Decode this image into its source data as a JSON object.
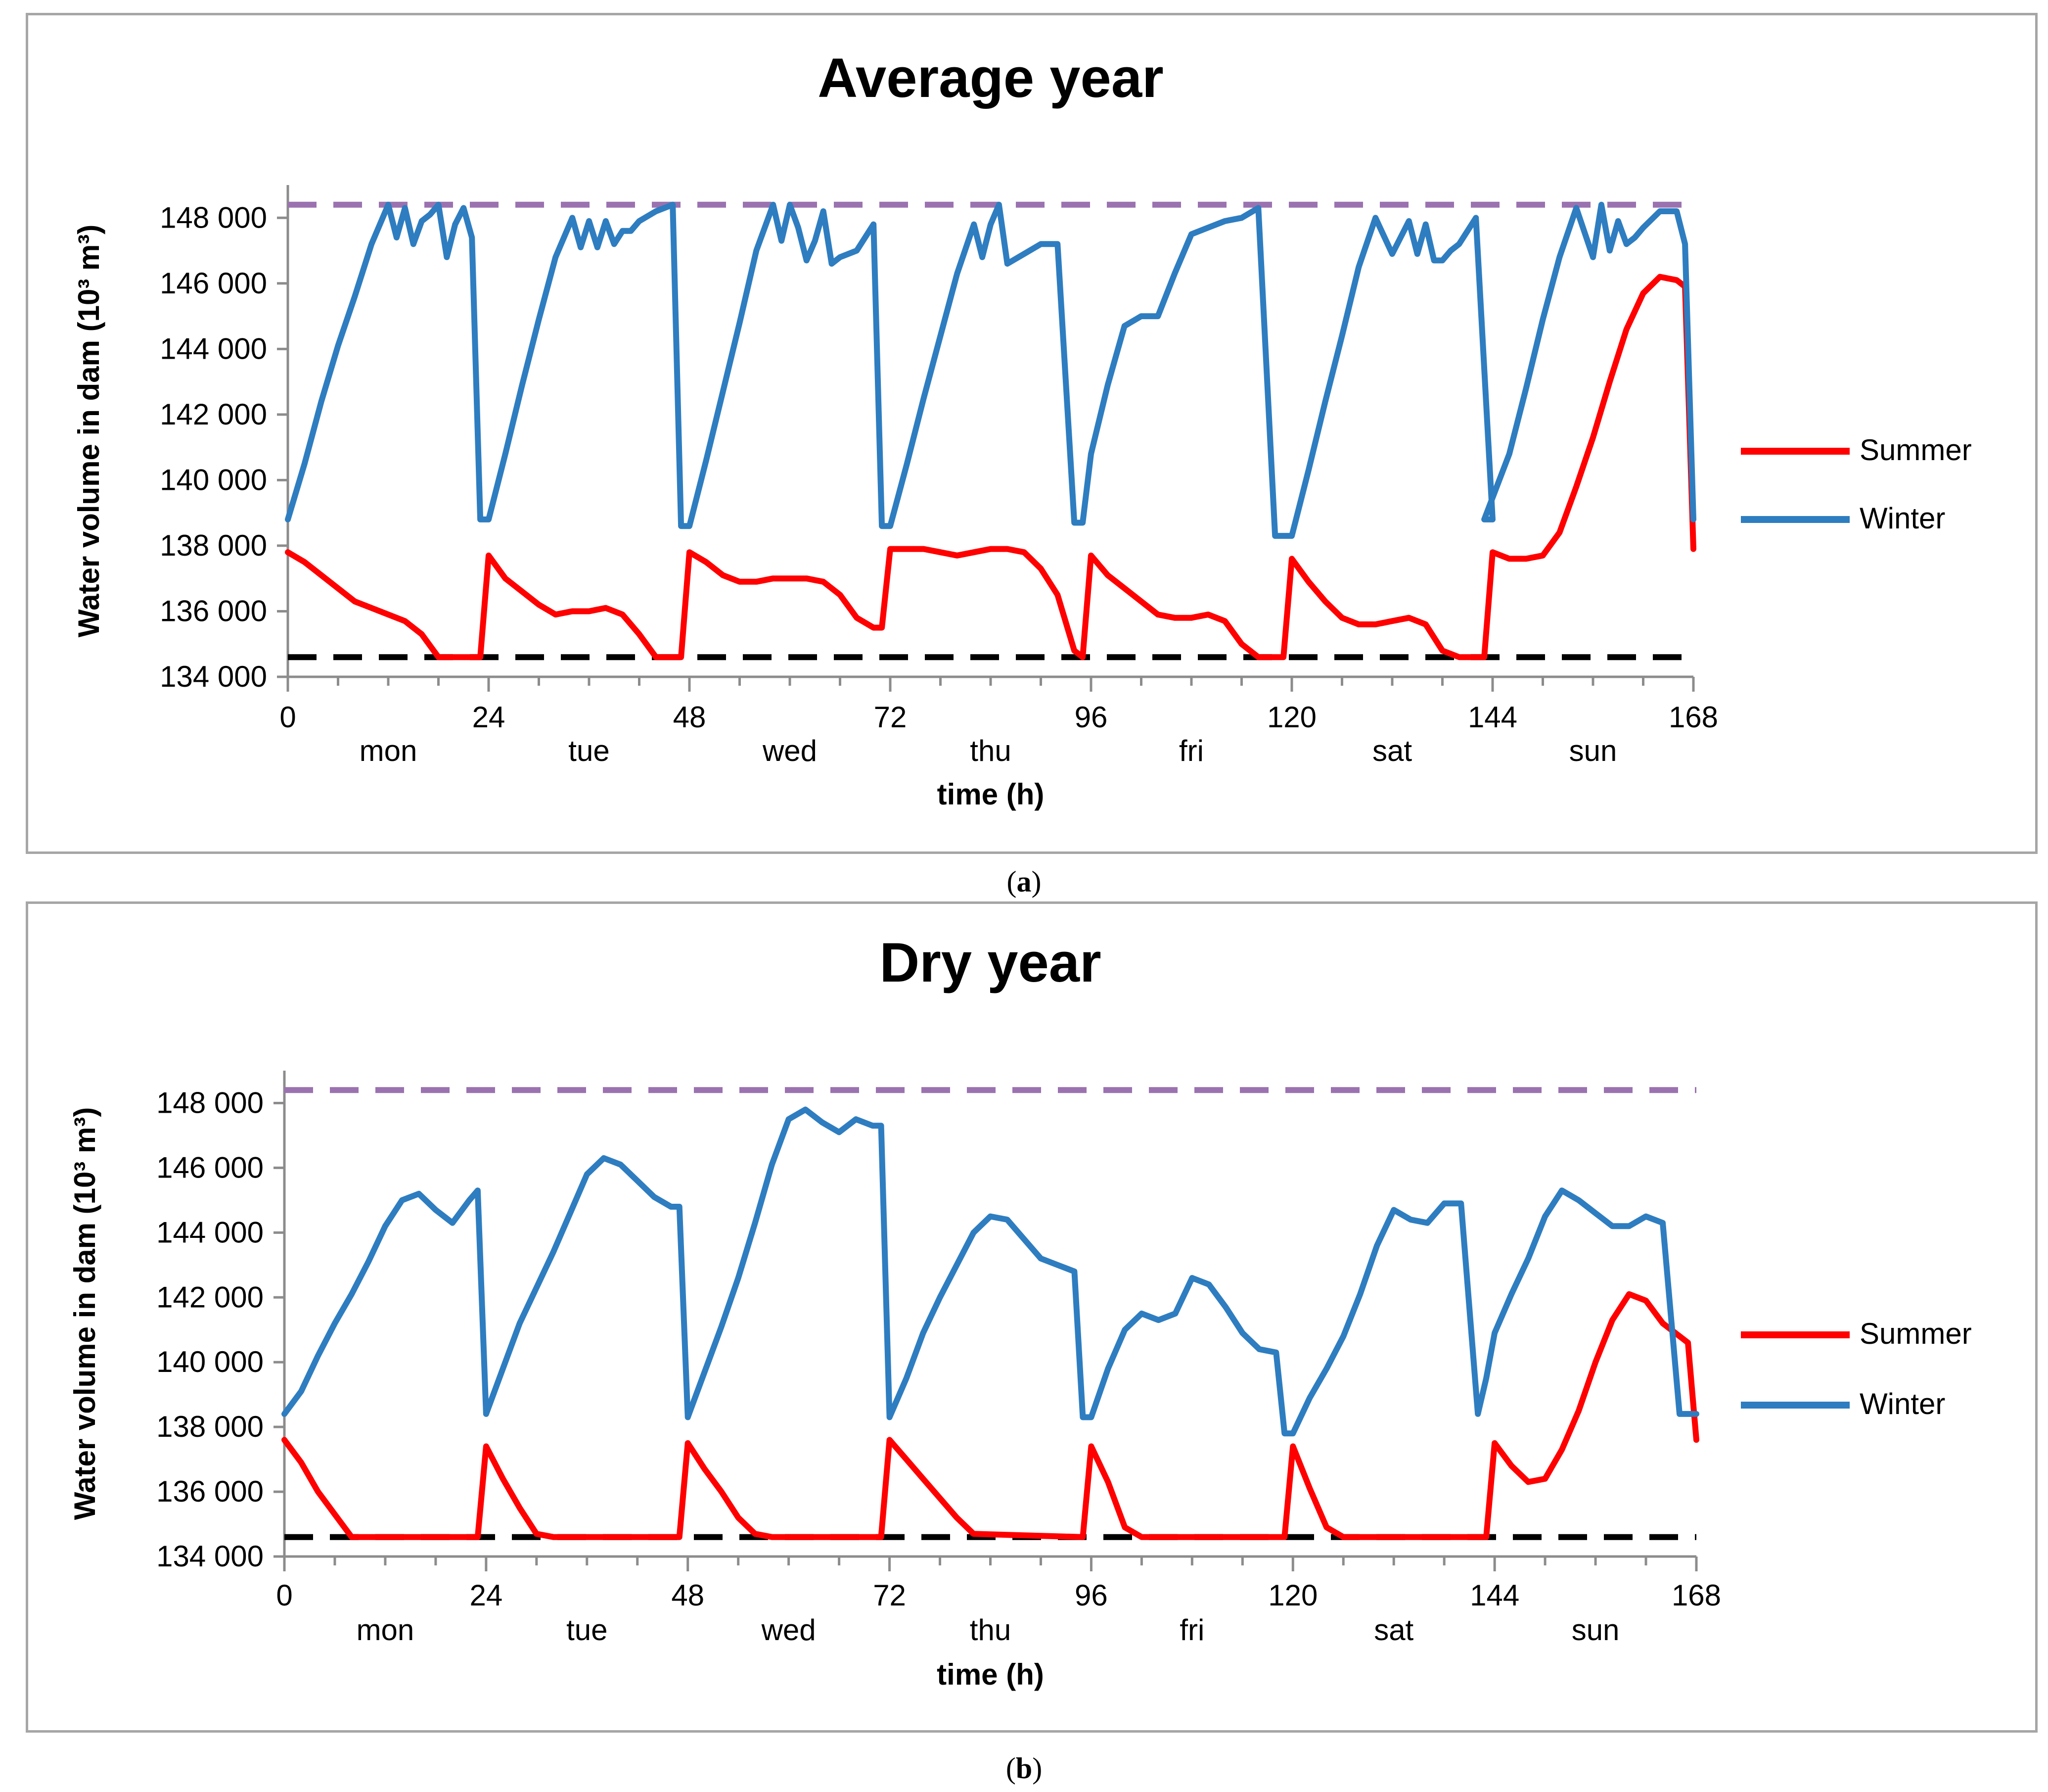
{
  "colors": {
    "summer": "#ff0000",
    "winter": "#2e7dc0",
    "max_line": "#9b72b0",
    "min_line": "#000000",
    "frame": "#a6a6a6"
  },
  "chart_data": [
    {
      "id": "a",
      "type": "line",
      "caption_prefix": "(",
      "caption_letter": "a",
      "caption_suffix": ")",
      "title": "Average year",
      "xlabel": "time (h)",
      "ylabel": "Water volume in dam (10³ m³)",
      "xlim": [
        0,
        168
      ],
      "ylim": [
        134000,
        149000
      ],
      "xticks": [
        "0",
        "24",
        "48",
        "72",
        "96",
        "120",
        "144",
        "168"
      ],
      "yticks": [
        "134 000",
        "136 000",
        "138 000",
        "140 000",
        "142 000",
        "144 000",
        "146 000",
        "148 000"
      ],
      "days": [
        "mon",
        "tue",
        "wed",
        "thu",
        "fri",
        "sat",
        "sun"
      ],
      "reference_lines": {
        "max": 148400,
        "min": 134600
      },
      "series": [
        {
          "name": "Summer",
          "x": [
            0,
            2,
            4,
            6,
            8,
            10,
            12,
            14,
            16,
            18,
            20,
            22,
            23,
            24,
            26,
            28,
            30,
            32,
            34,
            36,
            38,
            40,
            42,
            44,
            46,
            47,
            48,
            50,
            52,
            54,
            56,
            58,
            60,
            62,
            64,
            66,
            68,
            70,
            71,
            72,
            74,
            76,
            78,
            80,
            82,
            84,
            86,
            88,
            90,
            92,
            94,
            95,
            96,
            98,
            100,
            102,
            104,
            106,
            108,
            110,
            112,
            114,
            116,
            118,
            119,
            120,
            122,
            124,
            126,
            128,
            130,
            132,
            134,
            136,
            138,
            140,
            142,
            143,
            144,
            146,
            148,
            150,
            152,
            154,
            156,
            158,
            160,
            162,
            164,
            166,
            167,
            168
          ],
          "values": [
            137800,
            137500,
            137100,
            136700,
            136300,
            136100,
            135900,
            135700,
            135300,
            134600,
            134600,
            134600,
            134600,
            137700,
            137000,
            136600,
            136200,
            135900,
            136000,
            136000,
            136100,
            135900,
            135300,
            134600,
            134600,
            134600,
            137800,
            137500,
            137100,
            136900,
            136900,
            137000,
            137000,
            137000,
            136900,
            136500,
            135800,
            135500,
            135500,
            137900,
            137900,
            137900,
            137800,
            137700,
            137800,
            137900,
            137900,
            137800,
            137300,
            136500,
            134800,
            134600,
            137700,
            137100,
            136700,
            136300,
            135900,
            135800,
            135800,
            135900,
            135700,
            135000,
            134600,
            134600,
            134600,
            137600,
            136900,
            136300,
            135800,
            135600,
            135600,
            135700,
            135800,
            135600,
            134800,
            134600,
            134600,
            134600,
            137800,
            137600,
            137600,
            137700,
            138400,
            139800,
            141300,
            143000,
            144600,
            145700,
            146200,
            146100,
            145900,
            137900
          ]
        },
        {
          "name": "Winter",
          "x": [
            0,
            2,
            4,
            6,
            8,
            10,
            12,
            13,
            14,
            15,
            16,
            17,
            18,
            19,
            20,
            21,
            22,
            23,
            24,
            26,
            28,
            30,
            32,
            34,
            35,
            36,
            37,
            38,
            39,
            40,
            41,
            42,
            44,
            46,
            47,
            48,
            50,
            52,
            54,
            56,
            58,
            59,
            60,
            61,
            62,
            63,
            64,
            65,
            66,
            68,
            70,
            71,
            72,
            74,
            76,
            78,
            80,
            82,
            83,
            84,
            85,
            86,
            88,
            90,
            92,
            94,
            95,
            96,
            98,
            100,
            102,
            104,
            106,
            108,
            110,
            112,
            114,
            116,
            118,
            119,
            120,
            122,
            124,
            126,
            128,
            130,
            132,
            134,
            135,
            136,
            137,
            138,
            139,
            140,
            142,
            144,
            143,
            146,
            148,
            150,
            152,
            154,
            156,
            157,
            158,
            159,
            160,
            161,
            162,
            164,
            166,
            167,
            168
          ],
          "values": [
            138800,
            140500,
            142400,
            144100,
            145600,
            147200,
            148400,
            147400,
            148300,
            147200,
            147900,
            148100,
            148400,
            146800,
            147800,
            148300,
            147400,
            138800,
            138800,
            140800,
            142900,
            144900,
            146800,
            148000,
            147100,
            147900,
            147100,
            147900,
            147200,
            147600,
            147600,
            147900,
            148200,
            148400,
            138600,
            138600,
            140600,
            142700,
            144800,
            147000,
            148400,
            147300,
            148400,
            147700,
            146700,
            147300,
            148200,
            146600,
            146800,
            147000,
            147800,
            138600,
            138600,
            140500,
            142500,
            144400,
            146300,
            147800,
            146800,
            147800,
            148400,
            146600,
            146900,
            147200,
            147200,
            138700,
            138700,
            140800,
            142900,
            144700,
            145000,
            145000,
            146300,
            147500,
            147700,
            147900,
            148000,
            148300,
            138300,
            138300,
            138300,
            140300,
            142400,
            144400,
            146500,
            148000,
            146900,
            147900,
            146900,
            147800,
            146700,
            146700,
            147000,
            147200,
            148000,
            138800,
            138800,
            140800,
            142800,
            144900,
            146800,
            148300,
            146800,
            148400,
            147000,
            147900,
            147200,
            147400,
            147700,
            148200,
            148200,
            147200,
            138800
          ]
        }
      ]
    },
    {
      "id": "b",
      "type": "line",
      "caption_prefix": "(",
      "caption_letter": "b",
      "caption_suffix": ")",
      "title": "Dry year",
      "xlabel": "time (h)",
      "ylabel": "Water volume in dam (10³ m³)",
      "xlim": [
        0,
        168
      ],
      "ylim": [
        134000,
        149000
      ],
      "xticks": [
        "0",
        "24",
        "48",
        "72",
        "96",
        "120",
        "144",
        "168"
      ],
      "yticks": [
        "134 000",
        "136 000",
        "138 000",
        "140 000",
        "142 000",
        "144 000",
        "146 000",
        "148 000"
      ],
      "days": [
        "mon",
        "tue",
        "wed",
        "thu",
        "fri",
        "sat",
        "sun"
      ],
      "reference_lines": {
        "max": 148400,
        "min": 134600
      },
      "series": [
        {
          "name": "Summer",
          "x": [
            0,
            2,
            4,
            6,
            8,
            10,
            23,
            24,
            26,
            28,
            30,
            32,
            47,
            48,
            50,
            52,
            54,
            56,
            58,
            71,
            72,
            74,
            76,
            78,
            80,
            82,
            95,
            96,
            98,
            100,
            102,
            119,
            120,
            122,
            124,
            126,
            143,
            144,
            146,
            148,
            150,
            152,
            154,
            156,
            158,
            160,
            162,
            164,
            166,
            167,
            168
          ],
          "values": [
            137600,
            136900,
            136000,
            135300,
            134600,
            134600,
            134600,
            137400,
            136400,
            135500,
            134700,
            134600,
            134600,
            137500,
            136700,
            136000,
            135200,
            134700,
            134600,
            134600,
            137600,
            137000,
            136400,
            135800,
            135200,
            134700,
            134600,
            137400,
            136300,
            134900,
            134600,
            134600,
            137400,
            136100,
            134900,
            134600,
            134600,
            137500,
            136800,
            136300,
            136400,
            137300,
            138500,
            140000,
            141300,
            142100,
            141900,
            141200,
            140800,
            140600,
            137600
          ]
        },
        {
          "name": "Winter",
          "x": [
            0,
            2,
            4,
            6,
            8,
            10,
            12,
            14,
            16,
            18,
            20,
            22,
            23,
            24,
            26,
            28,
            30,
            32,
            34,
            36,
            38,
            40,
            42,
            44,
            46,
            47,
            48,
            50,
            52,
            54,
            56,
            58,
            60,
            62,
            64,
            66,
            68,
            70,
            71,
            72,
            74,
            76,
            78,
            80,
            82,
            84,
            86,
            88,
            90,
            92,
            94,
            95,
            96,
            98,
            100,
            102,
            104,
            106,
            108,
            110,
            112,
            114,
            116,
            118,
            119,
            120,
            122,
            124,
            126,
            128,
            130,
            132,
            134,
            136,
            138,
            140,
            142,
            143,
            144,
            146,
            148,
            150,
            152,
            154,
            156,
            158,
            160,
            162,
            164,
            166,
            167,
            168
          ],
          "values": [
            138400,
            139100,
            140200,
            141200,
            142100,
            143100,
            144200,
            145000,
            145200,
            144700,
            144300,
            145000,
            145300,
            138400,
            139800,
            141200,
            142300,
            143400,
            144600,
            145800,
            146300,
            146100,
            145600,
            145100,
            144800,
            144800,
            138300,
            139700,
            141100,
            142600,
            144300,
            146100,
            147500,
            147800,
            147400,
            147100,
            147500,
            147300,
            147300,
            138300,
            139500,
            140900,
            142000,
            143000,
            144000,
            144500,
            144400,
            143800,
            143200,
            143000,
            142800,
            138300,
            138300,
            139800,
            141000,
            141500,
            141300,
            141500,
            142600,
            142400,
            141700,
            140900,
            140400,
            140300,
            137800,
            137800,
            138900,
            139800,
            140800,
            142100,
            143600,
            144700,
            144400,
            144300,
            144900,
            144900,
            138400,
            139500,
            140900,
            142100,
            143200,
            144500,
            145300,
            145000,
            144600,
            144200,
            144200,
            144500,
            144300,
            138400,
            138400,
            138400
          ]
        }
      ]
    }
  ]
}
